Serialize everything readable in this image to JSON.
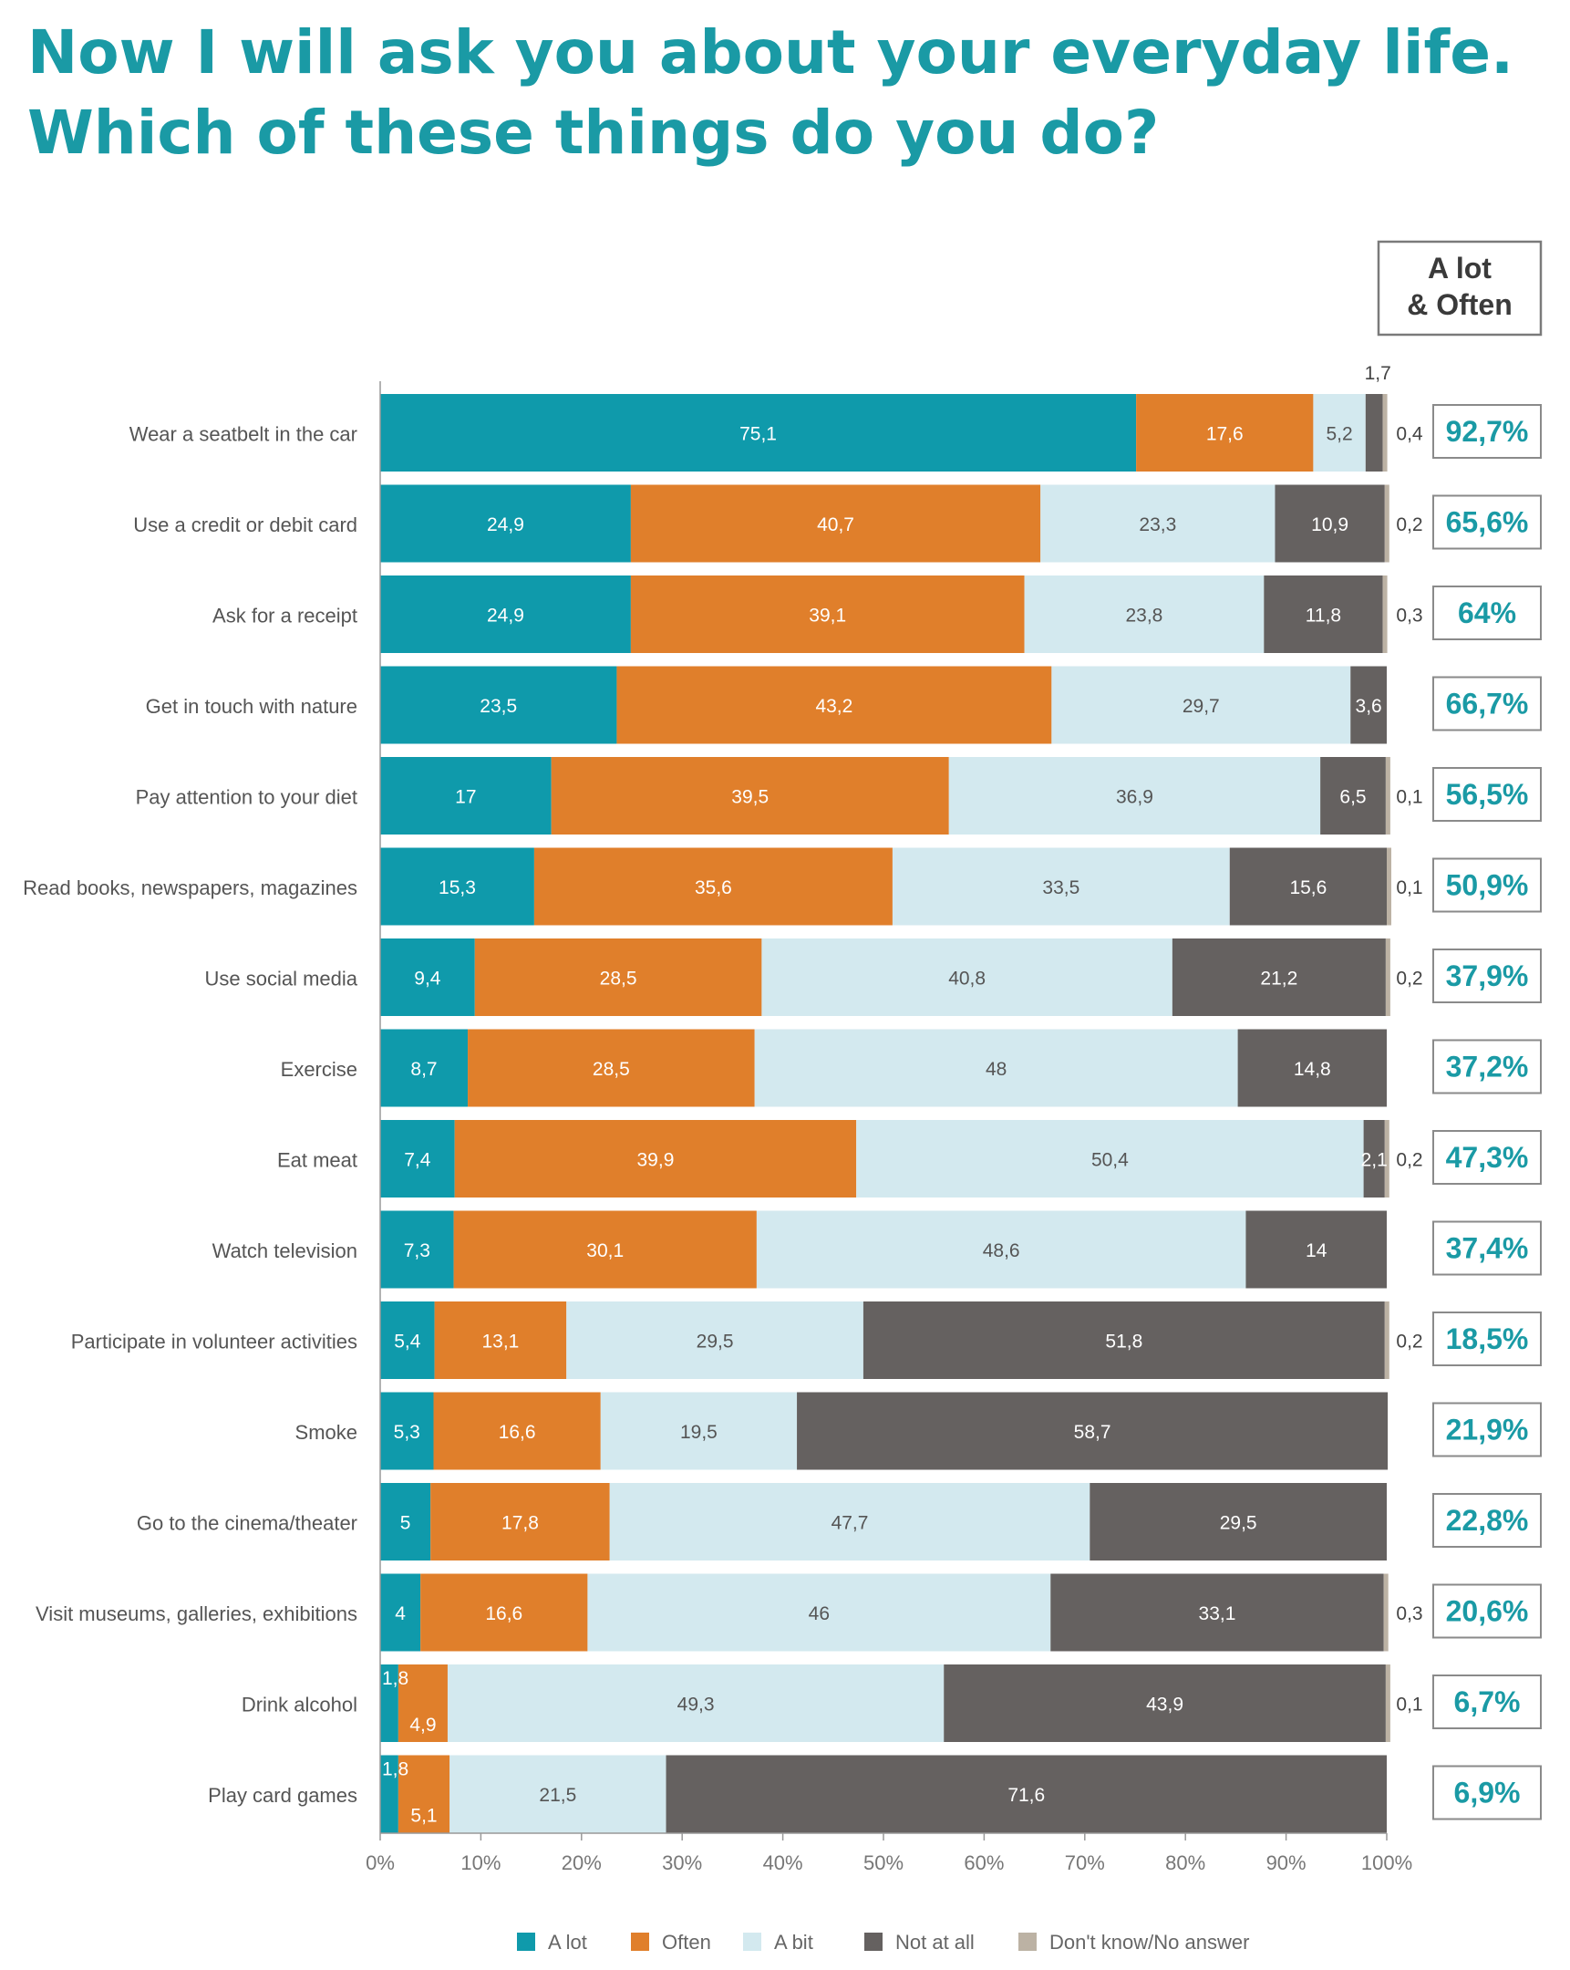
{
  "title": "Now I will ask you about your everyday life. Which of these things do you do?",
  "summary_header": "A lot & Often",
  "summary_header_lines": [
    "A lot",
    "& Often"
  ],
  "colors": {
    "a_lot": "#0f9aab",
    "often": "#e07f2b",
    "a_bit": "#d3e9ef",
    "not_at_all": "#656160",
    "dont_know": "#bcb2a4",
    "accent_text": "#1a9aa5"
  },
  "legend": [
    "A lot",
    "Often",
    "A bit",
    "Not at all",
    "Don't know/No answer"
  ],
  "chart_data": {
    "type": "bar",
    "orientation": "horizontal",
    "stacked": true,
    "title": "Now I will ask you about your everyday life. Which of these things do you do?",
    "xlim": [
      0,
      100
    ],
    "x_ticks": [
      "0%",
      "10%",
      "20%",
      "30%",
      "40%",
      "50%",
      "60%",
      "70%",
      "80%",
      "90%",
      "100%"
    ],
    "legend_position": "bottom",
    "categories": [
      "Wear a seatbelt in the car",
      "Use a credit or debit card",
      "Ask for a receipt",
      "Get in touch with nature",
      "Pay attention to your diet",
      "Read books, newspapers, magazines",
      "Use social media",
      "Exercise",
      "Eat meat",
      "Watch television",
      "Participate in volunteer activities",
      "Smoke",
      "Go to the cinema/theater",
      "Visit museums, galleries, exhibitions",
      "Drink alcohol",
      "Play card games"
    ],
    "series": [
      {
        "name": "A lot",
        "values": [
          75.1,
          24.9,
          24.9,
          23.5,
          17,
          15.3,
          9.4,
          8.7,
          7.4,
          7.3,
          5.4,
          5.3,
          5,
          4,
          1.8,
          1.8
        ],
        "labels": [
          "75,1",
          "24,9",
          "24,9",
          "23,5",
          "17",
          "15,3",
          "9,4",
          "8,7",
          "7,4",
          "7,3",
          "5,4",
          "5,3",
          "5",
          "4",
          "1,8",
          "1,8"
        ]
      },
      {
        "name": "Often",
        "values": [
          17.6,
          40.7,
          39.1,
          43.2,
          39.5,
          35.6,
          28.5,
          28.5,
          39.9,
          30.1,
          13.1,
          16.6,
          17.8,
          16.6,
          4.9,
          5.1
        ],
        "labels": [
          "17,6",
          "40,7",
          "39,1",
          "43,2",
          "39,5",
          "35,6",
          "28,5",
          "28,5",
          "39,9",
          "30,1",
          "13,1",
          "16,6",
          "17,8",
          "16,6",
          "4,9",
          "5,1"
        ]
      },
      {
        "name": "A bit",
        "values": [
          5.2,
          23.3,
          23.8,
          29.7,
          36.9,
          33.5,
          40.8,
          48,
          50.4,
          48.6,
          29.5,
          19.5,
          47.7,
          46,
          49.3,
          21.5
        ],
        "labels": [
          "5,2",
          "23,3",
          "23,8",
          "29,7",
          "36,9",
          "33,5",
          "40,8",
          "48",
          "50,4",
          "48,6",
          "29,5",
          "19,5",
          "47,7",
          "46",
          "49,3",
          "21,5"
        ]
      },
      {
        "name": "Not at all",
        "values": [
          1.7,
          10.9,
          11.8,
          3.6,
          6.5,
          15.6,
          21.2,
          14.8,
          2.1,
          14,
          51.8,
          58.7,
          29.5,
          33.1,
          43.9,
          71.6
        ],
        "labels": [
          "1,7",
          "10,9",
          "11,8",
          "3,6",
          "6,5",
          "15,6",
          "21,2",
          "14,8",
          "2,1",
          "14",
          "51,8",
          "58,7",
          "29,5",
          "33,1",
          "43,9",
          "71,6"
        ]
      },
      {
        "name": "Don't know/No answer",
        "values": [
          0.4,
          0.2,
          0.3,
          0,
          0.1,
          0.1,
          0.2,
          0,
          0.2,
          0,
          0.2,
          0,
          0,
          0.3,
          0.1,
          0
        ],
        "labels": [
          "0,4",
          "0,2",
          "0,3",
          "",
          "0,1",
          "0,1",
          "0,2",
          "",
          "0,2",
          "",
          "0,2",
          "",
          "",
          "0,3",
          "0,1",
          ""
        ]
      }
    ],
    "a_lot_and_often": [
      "92,7%",
      "65,6%",
      "64%",
      "66,7%",
      "56,5%",
      "50,9%",
      "37,9%",
      "37,2%",
      "47,3%",
      "37,4%",
      "18,5%",
      "21,9%",
      "22,8%",
      "20,6%",
      "6,7%",
      "6,9%"
    ]
  }
}
